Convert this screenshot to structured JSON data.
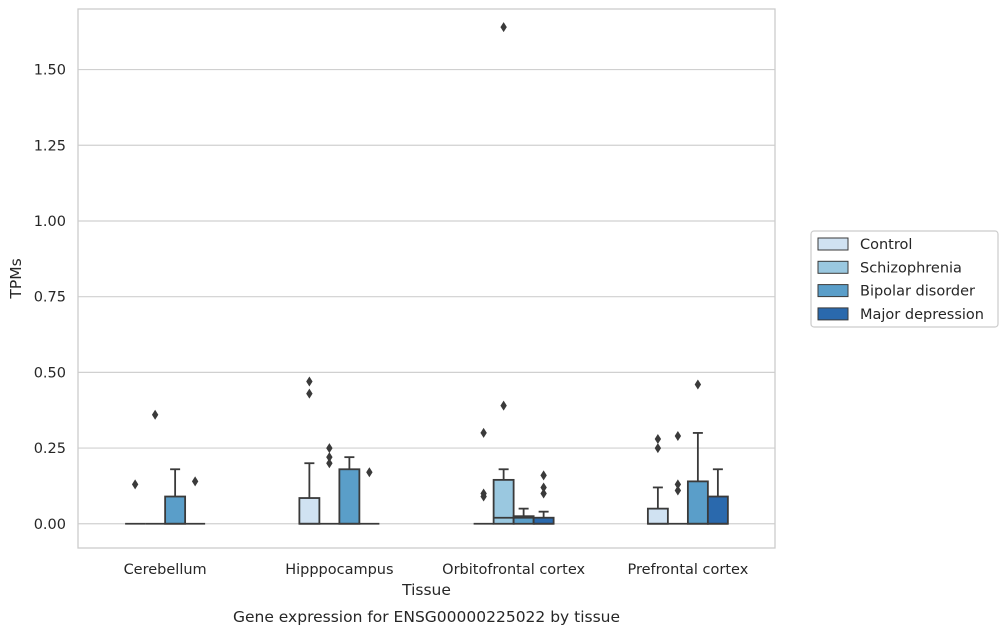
{
  "chart_data": {
    "type": "box",
    "caption": "Gene expression for ENSG00000225022 by tissue",
    "xlabel": "Tissue",
    "ylabel": "TPMs",
    "ylim": [
      -0.08,
      1.7
    ],
    "yticks": [
      0.0,
      0.25,
      0.5,
      0.75,
      1.0,
      1.25,
      1.5
    ],
    "ytick_labels": [
      "0.00",
      "0.25",
      "0.50",
      "0.75",
      "1.00",
      "1.25",
      "1.50"
    ],
    "grid": "horizontal",
    "legend_position": "right",
    "categories": [
      "Cerebellum",
      "Hipppocampus",
      "Orbitofrontal cortex",
      "Prefrontal cortex"
    ],
    "series": [
      {
        "name": "Control",
        "color": "#d0e2f2",
        "boxes": [
          {
            "q1": 0.0,
            "median": 0.0,
            "q3": 0.0,
            "whisker_low": 0.0,
            "whisker_high": 0.0,
            "outliers": [
              0.13
            ]
          },
          {
            "q1": 0.0,
            "median": 0.0,
            "q3": 0.085,
            "whisker_low": 0.0,
            "whisker_high": 0.2,
            "outliers": [
              0.43,
              0.47
            ]
          },
          {
            "q1": 0.0,
            "median": 0.0,
            "q3": 0.0,
            "whisker_low": 0.0,
            "whisker_high": 0.0,
            "outliers": [
              0.09,
              0.1,
              0.3
            ]
          },
          {
            "q1": 0.0,
            "median": 0.0,
            "q3": 0.05,
            "whisker_low": 0.0,
            "whisker_high": 0.12,
            "outliers": [
              0.25,
              0.28
            ]
          }
        ]
      },
      {
        "name": "Schizophrenia",
        "color": "#9ac8e0",
        "boxes": [
          {
            "q1": 0.0,
            "median": 0.0,
            "q3": 0.0,
            "whisker_low": 0.0,
            "whisker_high": 0.0,
            "outliers": [
              0.36
            ]
          },
          {
            "q1": 0.0,
            "median": 0.0,
            "q3": 0.0,
            "whisker_low": 0.0,
            "whisker_high": 0.0,
            "outliers": [
              0.2,
              0.22,
              0.25
            ]
          },
          {
            "q1": 0.0,
            "median": 0.02,
            "q3": 0.145,
            "whisker_low": 0.0,
            "whisker_high": 0.18,
            "outliers": [
              0.39,
              1.64
            ]
          },
          {
            "q1": 0.0,
            "median": 0.0,
            "q3": 0.0,
            "whisker_low": 0.0,
            "whisker_high": 0.0,
            "outliers": [
              0.11,
              0.13,
              0.29
            ]
          }
        ]
      },
      {
        "name": "Bipolar disorder",
        "color": "#5a9ec9",
        "boxes": [
          {
            "q1": 0.0,
            "median": 0.0,
            "q3": 0.09,
            "whisker_low": 0.0,
            "whisker_high": 0.18,
            "outliers": []
          },
          {
            "q1": 0.0,
            "median": 0.0,
            "q3": 0.18,
            "whisker_low": 0.0,
            "whisker_high": 0.22,
            "outliers": []
          },
          {
            "q1": 0.0,
            "median": 0.02,
            "q3": 0.025,
            "whisker_low": 0.0,
            "whisker_high": 0.05,
            "outliers": []
          },
          {
            "q1": 0.0,
            "median": 0.0,
            "q3": 0.14,
            "whisker_low": 0.0,
            "whisker_high": 0.3,
            "outliers": [
              0.46
            ]
          }
        ]
      },
      {
        "name": "Major depression",
        "color": "#2a69ad",
        "boxes": [
          {
            "q1": 0.0,
            "median": 0.0,
            "q3": 0.0,
            "whisker_low": 0.0,
            "whisker_high": 0.0,
            "outliers": [
              0.14
            ]
          },
          {
            "q1": 0.0,
            "median": 0.0,
            "q3": 0.0,
            "whisker_low": 0.0,
            "whisker_high": 0.0,
            "outliers": [
              0.17
            ]
          },
          {
            "q1": 0.0,
            "median": 0.0,
            "q3": 0.02,
            "whisker_low": 0.0,
            "whisker_high": 0.04,
            "outliers": [
              0.1,
              0.12,
              0.16
            ]
          },
          {
            "q1": 0.0,
            "median": 0.0,
            "q3": 0.09,
            "whisker_low": 0.0,
            "whisker_high": 0.18,
            "outliers": []
          }
        ]
      }
    ]
  }
}
